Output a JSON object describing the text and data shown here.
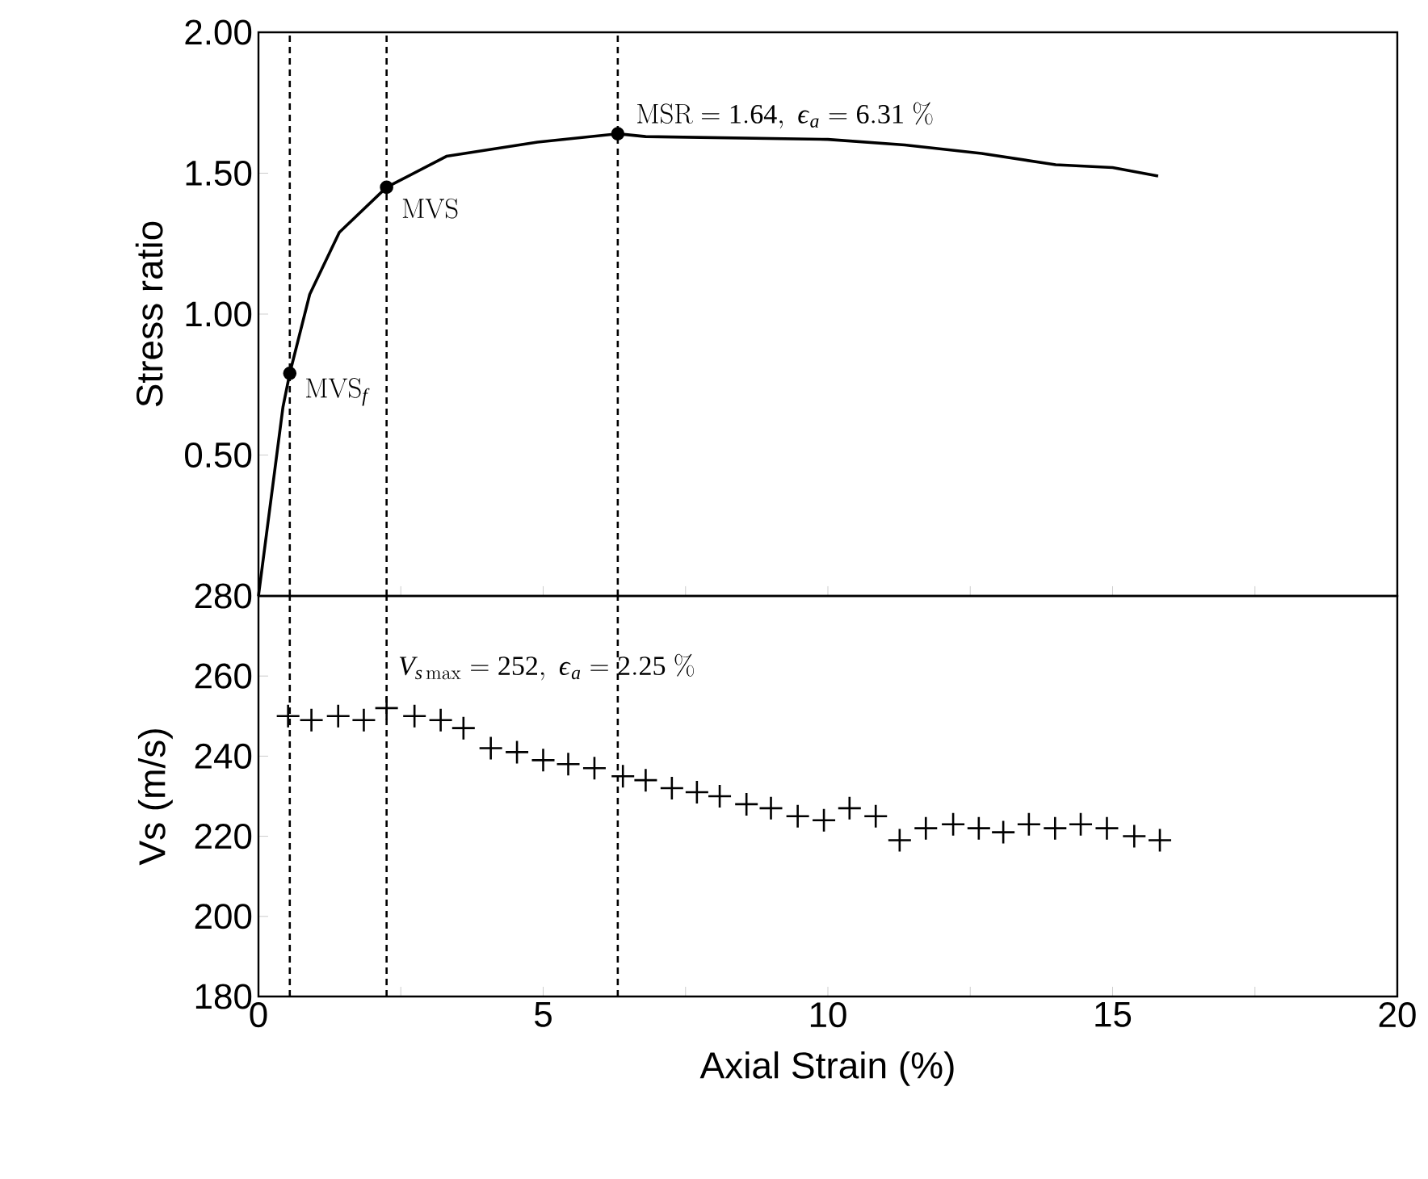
{
  "chart_data": [
    {
      "type": "line",
      "ylabel": "Stress ratio",
      "xlim": [
        0,
        20
      ],
      "ylim": [
        0,
        2
      ],
      "xticks": [
        0,
        {
          "value": 2.5,
          "label": null
        },
        5,
        {
          "value": 7.5,
          "label": null
        },
        10,
        {
          "value": 12.5,
          "label": null
        },
        15,
        {
          "value": 17.5,
          "label": null
        },
        20
      ],
      "yticks": [
        {
          "value": 0,
          "label": null
        },
        {
          "value": 0.5,
          "label": "0.50"
        },
        {
          "value": 1,
          "label": "1.00"
        },
        {
          "value": 1.5,
          "label": "1.50"
        },
        {
          "value": 2,
          "label": "2.00"
        }
      ],
      "tick_labels": "y",
      "series": [
        {
          "color": "#000000",
          "x": [
            0,
            0.43,
            0.55,
            0.9,
            1.42,
            2.25,
            3.3,
            4.9,
            6.31,
            6.8,
            10.0,
            11.35,
            12.7,
            14.0,
            15.0,
            15.8
          ],
          "values": [
            0,
            0.67,
            0.79,
            1.07,
            1.29,
            1.45,
            1.56,
            1.61,
            1.64,
            1.63,
            1.62,
            1.6,
            1.57,
            1.53,
            1.52,
            1.49
          ]
        },
        {
          "type": "scatter",
          "marker": "circle",
          "color": "#000000",
          "x": [
            0.55,
            2.25,
            6.31
          ],
          "values": [
            0.79,
            1.45,
            1.64
          ]
        }
      ],
      "ref_lines": [
        {
          "axis": "x",
          "value": 0.55,
          "line_style": "dashed"
        },
        {
          "axis": "x",
          "value": 2.25,
          "line_style": "dashed"
        },
        {
          "axis": "x",
          "value": 6.31,
          "line_style": "dashed"
        }
      ],
      "annotations": [
        {
          "text": "\\mathrm{MVS}_f",
          "x": 0.55,
          "y": 0.79
        },
        {
          "text": "\\mathrm{MVS}",
          "x": 2.25,
          "y": 1.45
        },
        {
          "text": "\\mathrm{MSR} = 1.64,\\ \\varepsilon_a = 6.31\\ \\%",
          "x": 6.31,
          "y": 1.64
        }
      ]
    },
    {
      "type": "scatter",
      "marker": "cross",
      "xlabel": "Axial Strain (%)",
      "ylabel": "Vs (m/s)",
      "xlim": [
        0,
        20
      ],
      "ylim": [
        180,
        280
      ],
      "xticks": [
        0,
        {
          "value": 2.5,
          "label": null
        },
        5,
        {
          "value": 7.5,
          "label": null
        },
        10,
        {
          "value": 12.5,
          "label": null
        },
        15,
        {
          "value": 17.5,
          "label": null
        },
        20
      ],
      "yticks": [
        180,
        200,
        220,
        240,
        260,
        280
      ],
      "series": [
        {
          "color": "#000000",
          "x": [
            0.52,
            0.93,
            1.4,
            1.85,
            2.25,
            2.74,
            3.2,
            3.6,
            4.08,
            4.54,
            5.0,
            5.44,
            5.9,
            6.4,
            6.8,
            7.26,
            7.7,
            8.1,
            8.57,
            9.0,
            9.47,
            9.93,
            10.38,
            10.84,
            11.26,
            11.72,
            12.2,
            12.65,
            13.08,
            13.53,
            13.99,
            14.44,
            14.9,
            15.38,
            15.83
          ],
          "values": [
            250,
            249,
            250,
            249,
            252,
            250,
            249,
            247,
            242,
            241,
            239,
            238,
            237,
            235,
            234,
            232,
            231,
            230,
            228,
            227,
            225,
            224,
            227,
            225,
            219,
            222,
            223,
            222,
            221,
            223,
            222,
            223,
            222,
            220,
            219
          ]
        }
      ],
      "ref_lines": [
        {
          "axis": "x",
          "value": 0.55,
          "line_style": "dashed"
        },
        {
          "axis": "x",
          "value": 2.25,
          "line_style": "dashed"
        },
        {
          "axis": "x",
          "value": 6.31,
          "line_style": "dashed"
        }
      ],
      "annotations": [
        {
          "text": "V_{s\\,\\mathrm{max}} = 252,\\ \\varepsilon_a = 2.25\\ \\%",
          "x": 2.25,
          "y": 252
        }
      ]
    }
  ]
}
